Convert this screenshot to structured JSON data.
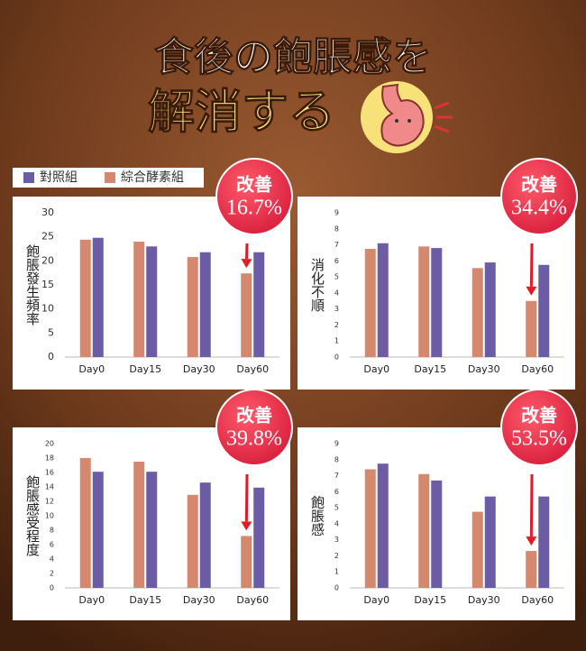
{
  "header": {
    "line1": "食後の飽脹感を",
    "line2": "解消する"
  },
  "legend": [
    "對照組",
    "綜合酵素組"
  ],
  "chart_data": [
    {
      "type": "bar",
      "ylabel": "飽脹發生頻率",
      "badge_label": "改善",
      "badge_value": "16.7%",
      "categories": [
        "Day0",
        "Day15",
        "Day30",
        "Day60"
      ],
      "series": [
        {
          "name": "對照組",
          "color": "#6b5ca5",
          "values": [
            24.8,
            23,
            21.8,
            21.8
          ]
        },
        {
          "name": "綜合酵素組",
          "color": "#d4896e",
          "values": [
            24.4,
            24,
            20.8,
            17.4
          ]
        }
      ],
      "ylim": [
        0,
        30
      ],
      "yticks": [
        0,
        5,
        10,
        15,
        20,
        25,
        30
      ]
    },
    {
      "type": "bar",
      "ylabel": "消化不順",
      "badge_label": "改善",
      "badge_value": "34.4%",
      "categories": [
        "Day0",
        "Day15",
        "Day30",
        "Day60"
      ],
      "series": [
        {
          "name": "對照組",
          "color": "#6b5ca5",
          "values": [
            7.1,
            6.8,
            5.9,
            5.75
          ]
        },
        {
          "name": "綜合酵素組",
          "color": "#d4896e",
          "values": [
            6.75,
            6.9,
            5.55,
            3.5
          ]
        }
      ],
      "ylim": [
        0,
        9
      ],
      "yticks": [
        0,
        1,
        2,
        3,
        4,
        5,
        6,
        7,
        8,
        9
      ]
    },
    {
      "type": "bar",
      "ylabel": "飽脹感受程度",
      "badge_label": "改善",
      "badge_value": "39.8%",
      "categories": [
        "Day0",
        "Day15",
        "Day30",
        "Day60"
      ],
      "series": [
        {
          "name": "對照組",
          "color": "#6b5ca5",
          "values": [
            16.1,
            16.1,
            14.6,
            13.9
          ]
        },
        {
          "name": "綜合酵素組",
          "color": "#d4896e",
          "values": [
            18,
            17.5,
            12.9,
            7.2
          ]
        }
      ],
      "ylim": [
        0,
        20
      ],
      "yticks": [
        0,
        2,
        4,
        6,
        8,
        10,
        12,
        14,
        16,
        18,
        20
      ]
    },
    {
      "type": "bar",
      "ylabel": "飽脹感",
      "badge_label": "改善",
      "badge_value": "53.5%",
      "categories": [
        "Day0",
        "Day15",
        "Day30",
        "Day60"
      ],
      "series": [
        {
          "name": "對照組",
          "color": "#6b5ca5",
          "values": [
            7.75,
            6.7,
            5.7,
            5.7
          ]
        },
        {
          "name": "綜合酵素組",
          "color": "#d4896e",
          "values": [
            7.4,
            7.1,
            4.75,
            2.3
          ]
        }
      ],
      "ylim": [
        0,
        9
      ],
      "yticks": [
        0,
        1,
        2,
        3,
        4,
        5,
        6,
        7,
        8,
        9
      ]
    }
  ]
}
